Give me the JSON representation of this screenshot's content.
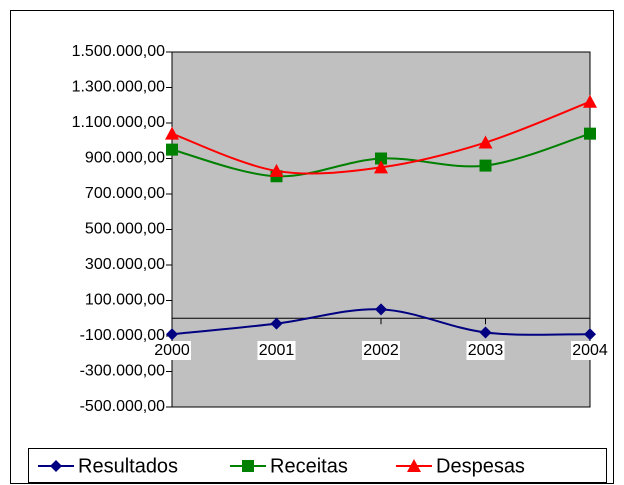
{
  "chart_data": {
    "type": "line",
    "smooth": true,
    "legend": "bottom",
    "categories": [
      "2000",
      "2001",
      "2002",
      "2003",
      "2004"
    ],
    "series": [
      {
        "name": "Resultados",
        "color": "#000080",
        "marker": "diamond",
        "values": [
          -90000,
          -30000,
          50000,
          -80000,
          -90000
        ]
      },
      {
        "name": "Receitas",
        "color": "#008000",
        "marker": "square",
        "values": [
          950000,
          800000,
          900000,
          860000,
          1040000
        ]
      },
      {
        "name": "Despesas",
        "color": "#ff0000",
        "marker": "triangle",
        "values": [
          1040000,
          830000,
          850000,
          990000,
          1220000
        ]
      }
    ],
    "ylim": [
      -500000,
      1500000
    ],
    "yticks": [
      {
        "value": -500000,
        "label": "-500.000,00"
      },
      {
        "value": -300000,
        "label": "-300.000,00"
      },
      {
        "value": -100000,
        "label": "-100.000,00"
      },
      {
        "value": 100000,
        "label": "100.000,00"
      },
      {
        "value": 300000,
        "label": "300.000,00"
      },
      {
        "value": 500000,
        "label": "500.000,00"
      },
      {
        "value": 700000,
        "label": "700.000,00"
      },
      {
        "value": 900000,
        "label": "900.000,00"
      },
      {
        "value": 1100000,
        "label": "1.100.000,00"
      },
      {
        "value": 1300000,
        "label": "1.300.000,00"
      },
      {
        "value": 1500000,
        "label": "1.500.000,00"
      }
    ],
    "plot_background": "#c0c0c0"
  }
}
